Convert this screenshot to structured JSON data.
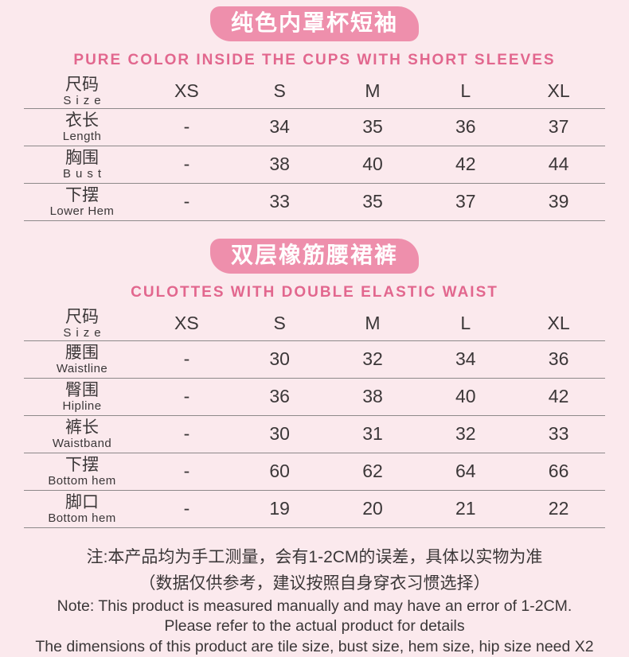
{
  "colors": {
    "bg": "#fbe9ed",
    "badge_pink": "#ee8fac",
    "badge_text": "#ffffff",
    "subtitle_pink": "#e2678e",
    "text_dark": "#3b3738",
    "rule_gray": "#8d898a"
  },
  "sections": [
    {
      "badge": "纯色内罩杯短袖",
      "subtitle": "PURE COLOR INSIDE THE CUPS WITH SHORT SLEEVES",
      "header": {
        "zh": "尺码",
        "en": "Size"
      },
      "columns": [
        "XS",
        "S",
        "M",
        "L",
        "XL"
      ],
      "rows": [
        {
          "zh": "衣长",
          "en": "Length",
          "values": [
            "-",
            "34",
            "35",
            "36",
            "37"
          ]
        },
        {
          "zh": "胸围",
          "en": "Bust",
          "values": [
            "-",
            "38",
            "40",
            "42",
            "44"
          ]
        },
        {
          "zh": "下摆",
          "en": "Lower Hem",
          "values": [
            "-",
            "33",
            "35",
            "37",
            "39"
          ]
        }
      ]
    },
    {
      "badge": "双层橡筋腰裙裤",
      "subtitle": "CULOTTES WITH DOUBLE ELASTIC WAIST",
      "header": {
        "zh": "尺码",
        "en": "Size"
      },
      "columns": [
        "XS",
        "S",
        "M",
        "L",
        "XL"
      ],
      "rows": [
        {
          "zh": "腰围",
          "en": "Waistline",
          "values": [
            "-",
            "30",
            "32",
            "34",
            "36"
          ]
        },
        {
          "zh": "臀围",
          "en": "Hipline",
          "values": [
            "-",
            "36",
            "38",
            "40",
            "42"
          ]
        },
        {
          "zh": "裤长",
          "en": "Waistband",
          "values": [
            "-",
            "30",
            "31",
            "32",
            "33"
          ]
        },
        {
          "zh": "下摆",
          "en": "Bottom hem",
          "values": [
            "-",
            "60",
            "62",
            "64",
            "66"
          ]
        },
        {
          "zh": "脚口",
          "en": "Bottom hem",
          "values": [
            "-",
            "19",
            "20",
            "21",
            "22"
          ]
        }
      ]
    }
  ],
  "notes": {
    "zh_line1": "注:本产品均为手工测量，会有1-2CM的误差，具体以实物为准",
    "zh_line2": "（数据仅供参考，建议按照自身穿衣习惯选择）",
    "en_line1": "Note: This product is measured manually and may have an error of 1-2CM.",
    "en_line2": "Please refer to the actual product for details",
    "en_line3": "The dimensions of this product are tile size, bust size, hem size, hip size need X2"
  }
}
